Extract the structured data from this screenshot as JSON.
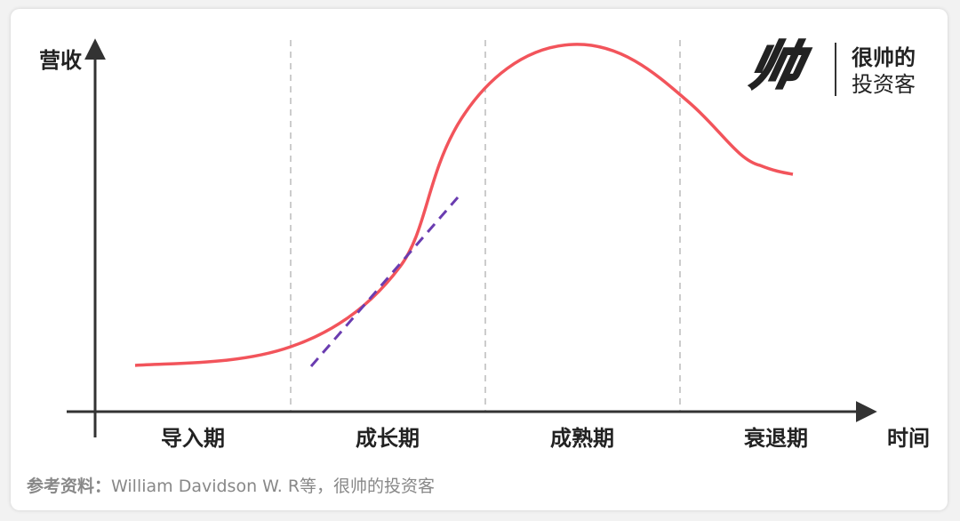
{
  "axes": {
    "y_label": "营收",
    "x_label": "时间"
  },
  "stages": [
    "导入期",
    "成长期",
    "成熟期",
    "衰退期"
  ],
  "logo": {
    "mark": "帅",
    "line1": "很帅的",
    "line2": "投资客"
  },
  "source": {
    "label": "参考资料：",
    "text": "William Davidson W. R等，很帅的投资客"
  }
}
